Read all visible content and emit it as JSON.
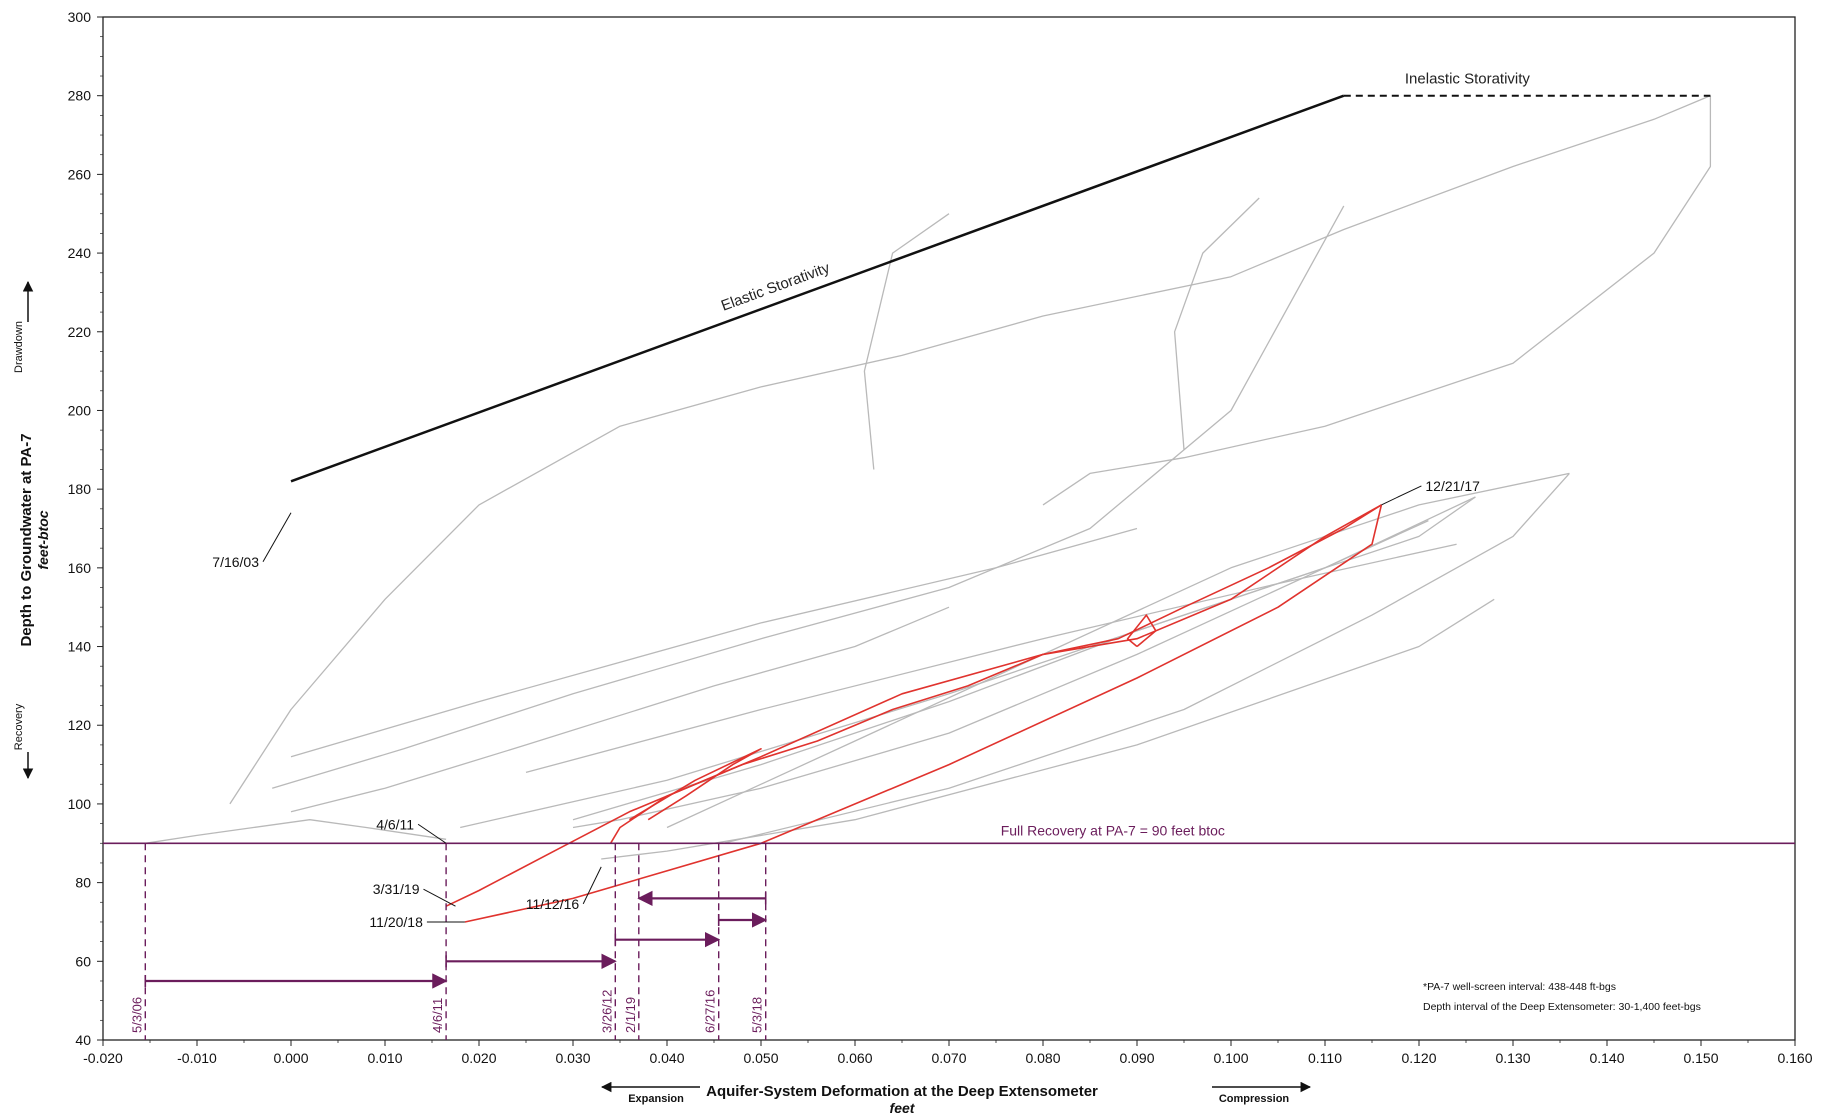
{
  "chart_data": {
    "type": "line",
    "xlabel": "Aquifer-System Deformation at the Deep Extensometer",
    "xunit": "feet",
    "ylabel": "Depth to Groundwater at PA-7",
    "yunit": "feet-btoc",
    "xlim": [
      -0.02,
      0.16
    ],
    "ylim": [
      40,
      300
    ],
    "x_ticks": [
      "-0.020",
      "-0.010",
      "0.000",
      "0.010",
      "0.020",
      "0.030",
      "0.040",
      "0.050",
      "0.060",
      "0.070",
      "0.080",
      "0.090",
      "0.100",
      "0.110",
      "0.120",
      "0.130",
      "0.140",
      "0.150",
      "0.160"
    ],
    "y_ticks": [
      "40",
      "60",
      "80",
      "100",
      "120",
      "140",
      "160",
      "180",
      "200",
      "220",
      "240",
      "260",
      "280",
      "300"
    ],
    "grid": false,
    "y_direction_labels": {
      "up": "Drawdown",
      "down": "Recovery"
    },
    "x_direction_labels": {
      "left": "Expansion",
      "right": "Compression"
    },
    "colors": {
      "history": "#b9b9b9",
      "recent": "#e0332e",
      "recovery": "#6b1d5c",
      "storativity": "#111111"
    },
    "elastic_line": {
      "label": "Elastic Storativity",
      "x": [
        0.0,
        0.112
      ],
      "y": [
        182,
        280
      ]
    },
    "inelastic_line": {
      "label": "Inelastic Storativity",
      "x": [
        0.112,
        0.151
      ],
      "y": [
        280,
        280
      ]
    },
    "full_recovery": {
      "label": "Full Recovery at PA-7 = 90 feet btoc",
      "y": 90
    },
    "grey_series": [
      {
        "x": [
          -0.0155,
          -0.01,
          -0.004,
          0.002,
          0.008,
          0.0165
        ],
        "y": [
          90,
          92,
          94,
          96,
          94,
          91
        ]
      },
      {
        "x": [
          -0.0065,
          0.0,
          0.01,
          0.02,
          0.035,
          0.05,
          0.065,
          0.08,
          0.1,
          0.112,
          0.13,
          0.145,
          0.15,
          0.151
        ],
        "y": [
          100,
          124,
          152,
          176,
          196,
          206,
          214,
          224,
          234,
          246,
          262,
          274,
          279,
          280
        ]
      },
      {
        "x": [
          0.151,
          0.151,
          0.145,
          0.13,
          0.11,
          0.095,
          0.085,
          0.08
        ],
        "y": [
          280,
          262,
          240,
          212,
          196,
          188,
          184,
          176
        ]
      },
      {
        "x": [
          -0.002,
          0.012,
          0.03,
          0.05,
          0.07,
          0.085,
          0.1,
          0.112
        ],
        "y": [
          104,
          114,
          128,
          142,
          155,
          170,
          200,
          252
        ]
      },
      {
        "x": [
          0.0,
          0.01,
          0.025,
          0.045,
          0.06,
          0.07
        ],
        "y": [
          98,
          104,
          115,
          130,
          140,
          150
        ]
      },
      {
        "x": [
          0.018,
          0.04,
          0.07,
          0.1,
          0.12,
          0.126
        ],
        "y": [
          94,
          106,
          128,
          152,
          168,
          178
        ]
      },
      {
        "x": [
          0.126,
          0.11,
          0.09,
          0.07,
          0.05,
          0.035,
          0.03
        ],
        "y": [
          178,
          160,
          138,
          118,
          104,
          96,
          94
        ]
      },
      {
        "x": [
          0.03,
          0.05,
          0.07,
          0.09,
          0.11,
          0.121
        ],
        "y": [
          96,
          110,
          126,
          144,
          160,
          172
        ]
      },
      {
        "x": [
          0.046,
          0.07,
          0.095,
          0.115,
          0.13,
          0.136
        ],
        "y": [
          90,
          104,
          124,
          148,
          168,
          184
        ]
      },
      {
        "x": [
          0.136,
          0.12,
          0.1,
          0.08,
          0.06,
          0.04
        ],
        "y": [
          184,
          176,
          160,
          138,
          116,
          94
        ]
      },
      {
        "x": [
          0.033,
          0.04,
          0.06,
          0.09,
          0.12,
          0.128
        ],
        "y": [
          86,
          88,
          96,
          115,
          140,
          152
        ]
      },
      {
        "x": [
          0.025,
          0.05,
          0.08,
          0.105,
          0.124
        ],
        "y": [
          108,
          124,
          142,
          156,
          166
        ]
      },
      {
        "x": [
          0.0,
          0.02,
          0.05,
          0.075,
          0.09
        ],
        "y": [
          112,
          126,
          146,
          160,
          170
        ]
      },
      {
        "x": [
          0.095,
          0.094,
          0.097,
          0.103
        ],
        "y": [
          190,
          220,
          240,
          254
        ]
      },
      {
        "x": [
          0.062,
          0.061,
          0.064,
          0.07
        ],
        "y": [
          185,
          210,
          240,
          250
        ]
      }
    ],
    "red_series": [
      {
        "x": [
          0.0165,
          0.02,
          0.028,
          0.036,
          0.05,
          0.065,
          0.08,
          0.09,
          0.1,
          0.11,
          0.116
        ],
        "y": [
          74,
          78,
          88,
          98,
          112,
          128,
          138,
          142,
          152,
          168,
          176
        ]
      },
      {
        "x": [
          0.116,
          0.112,
          0.104,
          0.095,
          0.088,
          0.08,
          0.072,
          0.064,
          0.056,
          0.048,
          0.04,
          0.035,
          0.034
        ],
        "y": [
          176,
          170,
          160,
          150,
          142,
          138,
          130,
          124,
          116,
          110,
          102,
          94,
          90
        ]
      },
      {
        "x": [
          0.0185,
          0.03,
          0.05,
          0.07,
          0.09,
          0.105,
          0.115,
          0.116
        ],
        "y": [
          70,
          76,
          90,
          110,
          132,
          150,
          166,
          176
        ]
      },
      {
        "x": [
          0.036,
          0.043,
          0.05,
          0.047,
          0.042,
          0.038
        ],
        "y": [
          96,
          106,
          114,
          110,
          102,
          96
        ]
      },
      {
        "x": [
          0.09,
          0.092,
          0.091,
          0.089,
          0.09
        ],
        "y": [
          140,
          144,
          148,
          142,
          140
        ]
      }
    ],
    "point_annotations": [
      {
        "label": "7/16/03",
        "x": 0.0,
        "y": 174
      },
      {
        "label": "12/21/17",
        "x": 0.116,
        "y": 176
      },
      {
        "label": "4/6/11",
        "x": 0.0165,
        "y": 90
      },
      {
        "label": "3/31/19",
        "x": 0.0175,
        "y": 74
      },
      {
        "label": "11/20/18",
        "x": 0.0185,
        "y": 70
      },
      {
        "label": "11/12/16",
        "x": 0.033,
        "y": 84
      }
    ],
    "recovery_dates": [
      {
        "label": "5/3/06",
        "x": -0.0155
      },
      {
        "label": "4/6/11",
        "x": 0.0165
      },
      {
        "label": "3/26/12",
        "x": 0.0345
      },
      {
        "label": "2/1/19",
        "x": 0.037
      },
      {
        "label": "6/27/16",
        "x": 0.0455
      },
      {
        "label": "5/3/18",
        "x": 0.0505
      }
    ],
    "shift_arrows": [
      {
        "x0": -0.0155,
        "x1": 0.0165,
        "y": 55
      },
      {
        "x0": 0.0165,
        "x1": 0.0345,
        "y": 60
      },
      {
        "x0": 0.0345,
        "x1": 0.0455,
        "y": 65.5
      },
      {
        "x0": 0.0455,
        "x1": 0.0505,
        "y": 70.5
      },
      {
        "x0": 0.0505,
        "x1": 0.037,
        "y": 76
      }
    ],
    "notes": [
      "*PA-7 well-screen interval: 438-448 ft-bgs",
      "Depth interval of the Deep Extensometer: 30-1,400 feet-bgs"
    ]
  }
}
